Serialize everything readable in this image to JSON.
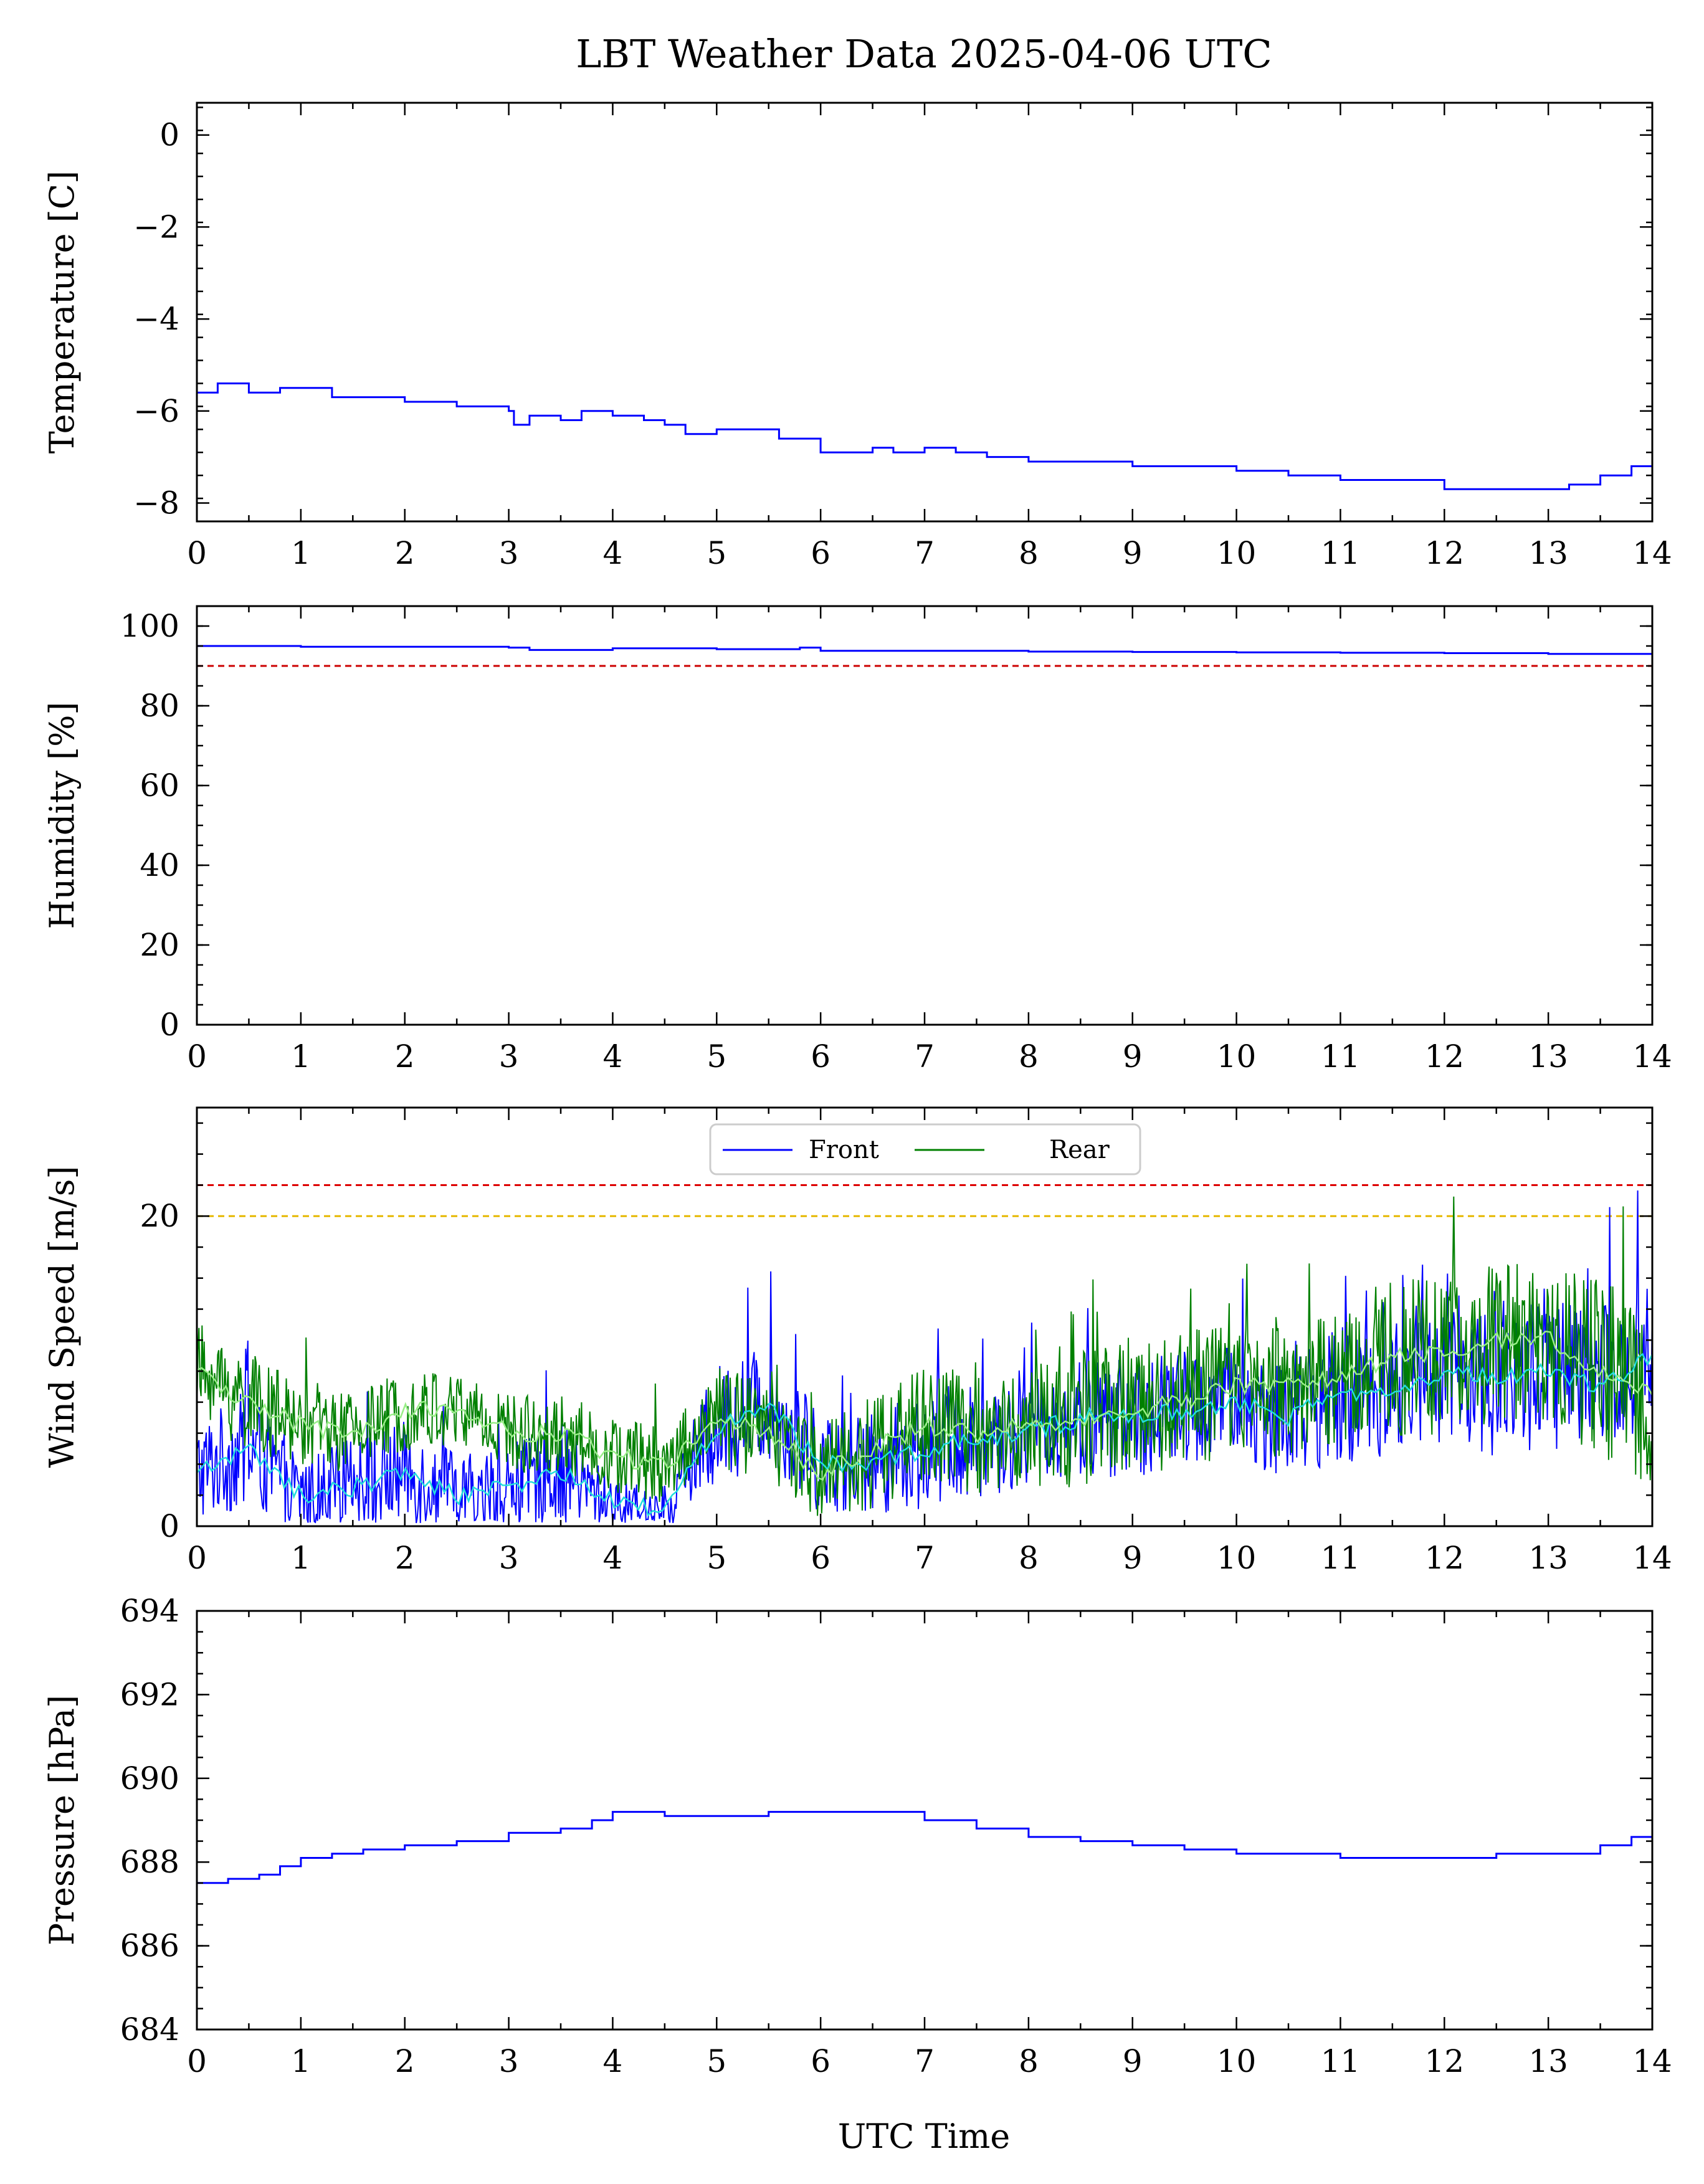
{
  "title": "LBT Weather Data 2025-04-06 UTC",
  "xlabel": "UTC Time",
  "chart_data": [
    {
      "type": "line",
      "ylabel": "Temperature [C]",
      "xlim": [
        0,
        14
      ],
      "ylim": [
        -8.4,
        0.7
      ],
      "xticks": [
        0,
        1,
        2,
        3,
        4,
        5,
        6,
        7,
        8,
        9,
        10,
        11,
        12,
        13,
        14
      ],
      "yticks": [
        0,
        -2,
        -4,
        -6,
        -8
      ],
      "ytick_labels": [
        "0",
        "−2",
        "−4",
        "−6",
        "−8"
      ],
      "series": [
        {
          "color": "#0000ff",
          "x": [
            0,
            0.2,
            0.3,
            0.5,
            0.8,
            1.0,
            1.3,
            1.6,
            2.0,
            2.3,
            2.5,
            2.8,
            3.0,
            3.05,
            3.2,
            3.5,
            3.7,
            4.0,
            4.3,
            4.5,
            4.7,
            5.0,
            5.3,
            5.6,
            5.8,
            6.0,
            6.3,
            6.5,
            6.7,
            7.0,
            7.3,
            7.6,
            8.0,
            8.5,
            9.0,
            9.5,
            10.0,
            10.5,
            11.0,
            11.5,
            12.0,
            12.5,
            13.0,
            13.2,
            13.5,
            13.8,
            14.0
          ],
          "y": [
            -5.6,
            -5.4,
            -5.4,
            -5.6,
            -5.5,
            -5.5,
            -5.7,
            -5.7,
            -5.8,
            -5.8,
            -5.9,
            -5.9,
            -6.0,
            -6.3,
            -6.1,
            -6.2,
            -6.0,
            -6.1,
            -6.2,
            -6.3,
            -6.5,
            -6.4,
            -6.4,
            -6.6,
            -6.6,
            -6.9,
            -6.9,
            -6.8,
            -6.9,
            -6.8,
            -6.9,
            -7.0,
            -7.1,
            -7.1,
            -7.2,
            -7.2,
            -7.3,
            -7.4,
            -7.5,
            -7.5,
            -7.7,
            -7.7,
            -7.7,
            -7.6,
            -7.4,
            -7.2,
            -7.1
          ]
        }
      ]
    },
    {
      "type": "line",
      "ylabel": "Humidity [%]",
      "xlim": [
        0,
        14
      ],
      "ylim": [
        0,
        105
      ],
      "xticks": [
        0,
        1,
        2,
        3,
        4,
        5,
        6,
        7,
        8,
        9,
        10,
        11,
        12,
        13,
        14
      ],
      "yticks": [
        0,
        20,
        40,
        60,
        80,
        100
      ],
      "ytick_labels": [
        "0",
        "20",
        "40",
        "60",
        "80",
        "100"
      ],
      "threshold_lines": [
        {
          "y": 90,
          "color": "#cc0000",
          "style": "dashed"
        }
      ],
      "series": [
        {
          "color": "#0000ff",
          "x": [
            0,
            1,
            2,
            3,
            3.2,
            4,
            5,
            5.8,
            6,
            7,
            8,
            9,
            10,
            11,
            12,
            13,
            14
          ],
          "y": [
            95,
            94.8,
            94.8,
            94.6,
            94.0,
            94.4,
            94.2,
            94.6,
            93.8,
            93.8,
            93.6,
            93.5,
            93.4,
            93.3,
            93.2,
            93.0,
            92.5
          ]
        }
      ]
    },
    {
      "type": "line",
      "ylabel": "Wind Speed [m/s]",
      "xlim": [
        0,
        14
      ],
      "ylim": [
        0,
        27
      ],
      "xticks": [
        0,
        1,
        2,
        3,
        4,
        5,
        6,
        7,
        8,
        9,
        10,
        11,
        12,
        13,
        14
      ],
      "yticks": [
        0,
        20
      ],
      "ytick_labels": [
        "0",
        "20"
      ],
      "threshold_lines": [
        {
          "y": 22,
          "color": "#dd0000",
          "style": "dashed"
        },
        {
          "y": 20,
          "color": "#e6b800",
          "style": "dashed"
        }
      ],
      "legend": {
        "position": "top-center",
        "entries": [
          "Front",
          "Rear"
        ]
      },
      "series": [
        {
          "name": "Front",
          "color": "#0000ff",
          "x": [
            0,
            0.5,
            1,
            1.5,
            2,
            2.5,
            3,
            3.5,
            4,
            4.5,
            5,
            5.5,
            6,
            6.5,
            7,
            7.5,
            8,
            8.5,
            9,
            9.5,
            10,
            10.5,
            11,
            11.5,
            12,
            12.5,
            13,
            13.5,
            14
          ],
          "y": [
            3.5,
            5,
            2,
            2.5,
            3.5,
            2,
            2.5,
            3.5,
            1.5,
            1,
            6.5,
            8,
            4,
            4,
            5,
            5.5,
            6,
            7,
            7,
            7.5,
            8,
            7,
            8.5,
            9,
            10,
            9.5,
            10,
            9,
            11
          ],
          "spread": [
            2.5,
            3,
            2,
            2.5,
            2.5,
            2,
            2,
            2.5,
            1.2,
            1.2,
            3,
            3,
            2.5,
            2.5,
            3,
            3,
            2.5,
            3,
            3,
            3,
            3,
            3,
            3.5,
            3.5,
            4,
            4,
            4,
            4,
            4
          ]
        },
        {
          "name": "Rear",
          "color": "#008000",
          "x": [
            0,
            0.5,
            1,
            1.5,
            2,
            2.5,
            3,
            3.5,
            4,
            4.5,
            5,
            5.5,
            6,
            6.5,
            7,
            7.5,
            8,
            8.5,
            9,
            9.5,
            10,
            10.5,
            11,
            11.5,
            12,
            12.5,
            13,
            13.5,
            14
          ],
          "y": [
            10,
            8,
            6.5,
            6,
            7.5,
            7.5,
            6,
            6,
            4.5,
            4,
            7,
            6,
            3.5,
            5,
            6.5,
            6,
            6.5,
            7,
            7.5,
            8,
            9,
            9,
            9.5,
            11,
            11,
            12,
            12,
            10,
            8.5
          ],
          "spread": [
            2.5,
            2.5,
            2,
            2,
            2,
            2,
            2,
            2,
            2,
            2,
            2.5,
            2.5,
            2.5,
            3,
            3,
            3,
            3,
            3.5,
            3.5,
            3.5,
            3.5,
            3.5,
            3.5,
            4,
            4,
            4,
            4,
            4.5,
            4.5
          ]
        }
      ]
    },
    {
      "type": "line",
      "ylabel": "Pressure [hPa]",
      "xlim": [
        0,
        14
      ],
      "ylim": [
        684,
        694
      ],
      "xticks": [
        0,
        1,
        2,
        3,
        4,
        5,
        6,
        7,
        8,
        9,
        10,
        11,
        12,
        13,
        14
      ],
      "yticks": [
        684,
        686,
        688,
        690,
        692,
        694
      ],
      "ytick_labels": [
        "684",
        "686",
        "688",
        "690",
        "692",
        "694"
      ],
      "series": [
        {
          "color": "#0000ff",
          "x": [
            0,
            0.3,
            0.6,
            0.8,
            1.0,
            1.3,
            1.6,
            2.0,
            2.5,
            3.0,
            3.5,
            3.8,
            4.0,
            4.2,
            4.5,
            5.0,
            5.5,
            6.0,
            6.5,
            7.0,
            7.5,
            8.0,
            8.5,
            9.0,
            9.5,
            10.0,
            10.5,
            11.0,
            11.5,
            12.0,
            12.5,
            13.0,
            13.5,
            13.8,
            14.0
          ],
          "y": [
            687.5,
            687.6,
            687.7,
            687.9,
            688.1,
            688.2,
            688.3,
            688.4,
            688.5,
            688.7,
            688.8,
            689.0,
            689.2,
            689.2,
            689.1,
            689.1,
            689.2,
            689.2,
            689.2,
            689.0,
            688.8,
            688.6,
            688.5,
            688.4,
            688.3,
            688.2,
            688.2,
            688.1,
            688.1,
            688.1,
            688.2,
            688.2,
            688.4,
            688.6,
            688.8
          ]
        }
      ]
    }
  ]
}
